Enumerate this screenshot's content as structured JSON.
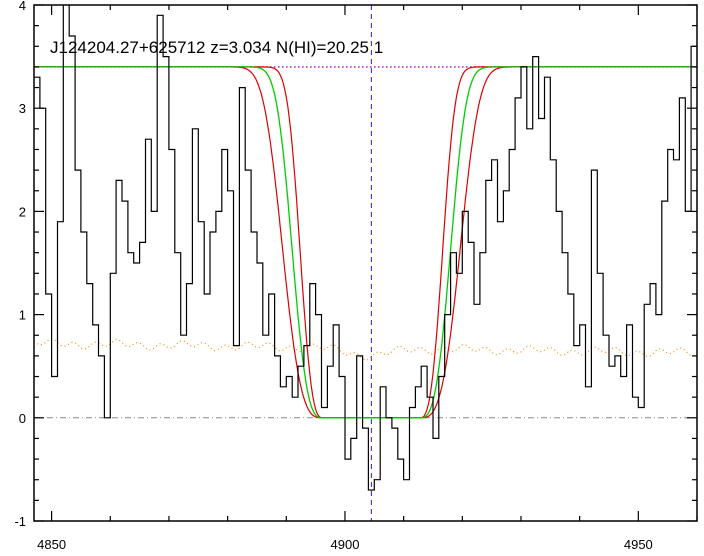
{
  "chart_data": {
    "type": "line",
    "title": "J124204.27+625712 z=3.034 N(HI)=20.25 1",
    "xlabel": "",
    "ylabel": "",
    "xlim": [
      4847,
      4960
    ],
    "ylim": [
      -1,
      4
    ],
    "x_ticks": [
      4850,
      4900,
      4950
    ],
    "y_ticks": [
      -1,
      0,
      1,
      2,
      3,
      4
    ],
    "colors": {
      "flux": "#000000",
      "model": "#00cc00",
      "model_bounds": "#dd0000",
      "continuum": "#aa00cc",
      "center_line": "#2222cc",
      "error": "#ff8800",
      "zero_line": "#888888"
    },
    "continuum_level": 3.4,
    "center_wavelength": 4904.5,
    "series": [
      {
        "style": "step",
        "x": [
          4847,
          4848,
          4849,
          4850,
          4851,
          4852,
          4853,
          4854,
          4855,
          4856,
          4857,
          4858,
          4859,
          4860,
          4861,
          4862,
          4863,
          4864,
          4865,
          4866,
          4867,
          4868,
          4869,
          4870,
          4871,
          4872,
          4873,
          4874,
          4875,
          4876,
          4877,
          4878,
          4879,
          4880,
          4881,
          4882,
          4883,
          4884,
          4885,
          4886,
          4887,
          4888,
          4889,
          4890,
          4891,
          4892,
          4893,
          4894,
          4895,
          4896,
          4897,
          4898,
          4899,
          4900,
          4901,
          4902,
          4903,
          4904,
          4905,
          4906,
          4907,
          4908,
          4909,
          4910,
          4911,
          4912,
          4913,
          4914,
          4915,
          4916,
          4917,
          4918,
          4919,
          4920,
          4921,
          4922,
          4923,
          4924,
          4925,
          4926,
          4927,
          4928,
          4929,
          4930,
          4931,
          4932,
          4933,
          4934,
          4935,
          4936,
          4937,
          4938,
          4939,
          4940,
          4941,
          4942,
          4943,
          4944,
          4945,
          4946,
          4947,
          4948,
          4949,
          4950,
          4951,
          4952,
          4953,
          4954,
          4955,
          4956,
          4957,
          4958,
          4959
        ],
        "y": [
          3.3,
          3.0,
          1.2,
          0.4,
          1.9,
          4.1,
          3.7,
          2.4,
          1.8,
          1.3,
          0.9,
          0.6,
          0.0,
          1.4,
          2.3,
          2.1,
          1.6,
          1.5,
          1.7,
          2.7,
          2.0,
          3.9,
          3.5,
          2.6,
          1.6,
          0.8,
          1.3,
          2.8,
          1.9,
          1.2,
          1.8,
          2.0,
          2.6,
          2.2,
          0.7,
          3.2,
          2.4,
          1.8,
          1.5,
          0.8,
          1.2,
          0.6,
          0.3,
          0.4,
          0.2,
          0.5,
          0.7,
          1.3,
          1.0,
          0.1,
          0.5,
          0.9,
          0.4,
          -0.4,
          -0.2,
          0.6,
          -0.1,
          -0.7,
          -0.6,
          0.3,
          0.0,
          -0.1,
          -0.4,
          -0.6,
          0.1,
          0.3,
          0.5,
          0.2,
          -0.2,
          0.4,
          1.0,
          1.6,
          1.4,
          2.0,
          1.7,
          1.1,
          1.6,
          2.3,
          2.5,
          1.9,
          2.2,
          2.6,
          3.1,
          3.4,
          2.8,
          3.5,
          2.9,
          3.3,
          2.5,
          2.0,
          1.6,
          1.2,
          0.7,
          0.9,
          0.3,
          2.4,
          1.4,
          0.8,
          0.5,
          0.6,
          0.4,
          0.9,
          0.2,
          0.1,
          1.1,
          1.3,
          1.0,
          2.1,
          2.6,
          2.5,
          3.1,
          2.0,
          3.6
        ]
      }
    ],
    "model_profile": {
      "b": [
        4896.2,
        4912.8
      ],
      "w": [
        4.5,
        6.0,
        7.8
      ],
      "n": [
        2.8,
        3.0,
        3.2
      ]
    },
    "error_spectrum": {
      "x_start": 4847,
      "x_end": 4960,
      "base": 0.72,
      "dip_center": 4904,
      "dip_depth": 0.07
    }
  }
}
